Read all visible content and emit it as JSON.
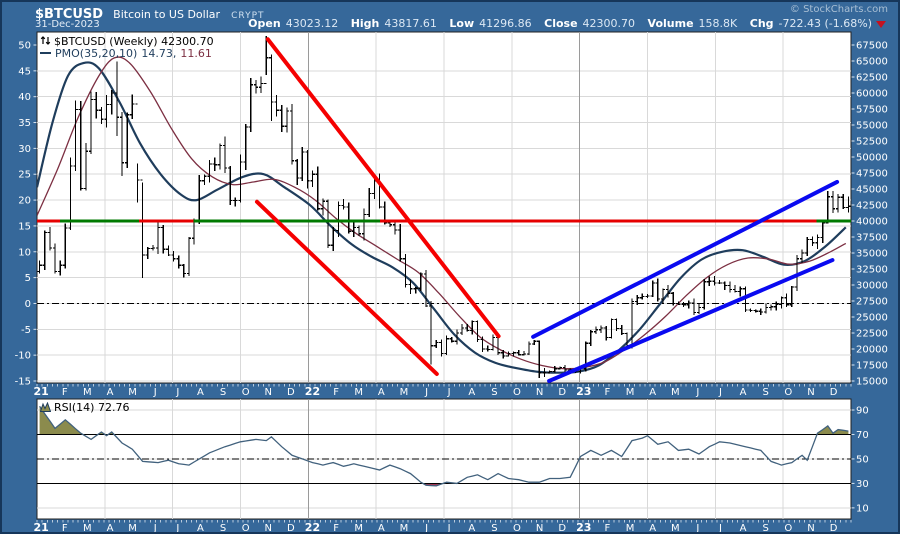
{
  "header": {
    "symbol": "$BTCUSD",
    "name": "Bitcoin to US Dollar",
    "exchange": "CRYPT",
    "date": "31-Dec-2023",
    "copyright": "© StockCharts.com",
    "quote": [
      {
        "label": "Open",
        "value": "43023.12"
      },
      {
        "label": "High",
        "value": "43817.61"
      },
      {
        "label": "Low",
        "value": "41296.86"
      },
      {
        "label": "Close",
        "value": "42300.70"
      },
      {
        "label": "Volume",
        "value": "158.8K"
      },
      {
        "label": "Chg",
        "value": "-722.43 (-1.68%)"
      }
    ]
  },
  "colors": {
    "frame": "#36689a",
    "bar": "#000000",
    "pmo": "#1f3d5c",
    "pmo_signal": "#7c2f42",
    "trend_red": "#f50000",
    "trend_blue": "#0a0af0",
    "hline_red": "#e60000",
    "hline_green": "#007a00",
    "rsi_line": "#41617d",
    "rsi_over_fill": "#8b8b4d",
    "rsi_under_fill": "#a53a55",
    "grid": "#d9d9d9",
    "grid_year": "#9a9a9a",
    "axis_text": "#ffffff"
  },
  "chart_data": [
    {
      "type": "bar",
      "title": "$BTCUSD (Weekly) 42300.70",
      "overlay": {
        "label": "PMO(35,20,10)",
        "pmo_value": "14.73,",
        "signal_value": "11.61"
      },
      "left_axis_ticks": [
        50,
        45,
        40,
        35,
        30,
        25,
        20,
        15,
        10,
        5,
        0,
        -5,
        -10,
        -15
      ],
      "right_axis_ticks": [
        67500,
        65000,
        62500,
        60000,
        57500,
        55000,
        52500,
        50000,
        47500,
        45000,
        42500,
        40000,
        37500,
        35000,
        32500,
        30000,
        27500,
        25000,
        22500,
        20000,
        17500,
        15000
      ],
      "x_labels": [
        "21",
        "F",
        "M",
        "A",
        "M",
        "J",
        "J",
        "A",
        "S",
        "O",
        "N",
        "D",
        "22",
        "F",
        "M",
        "A",
        "M",
        "J",
        "J",
        "A",
        "S",
        "O",
        "N",
        "D",
        "23",
        "F",
        "M",
        "A",
        "M",
        "J",
        "J",
        "A",
        "S",
        "O",
        "N",
        "D"
      ],
      "price_unit": "thousand-USD",
      "weekly_closes": [
        33.1,
        38.2,
        35.8,
        32.1,
        33.1,
        38.9,
        48.6,
        57.4,
        45.1,
        50.9,
        59.0,
        57.3,
        55.9,
        58.2,
        60.0,
        56.2,
        49.1,
        56.6,
        58.3,
        46.4,
        34.7,
        35.7,
        35.8,
        39.0,
        35.6,
        34.7,
        34.1,
        33.1,
        31.8,
        37.3,
        39.9,
        46.3,
        47.0,
        48.9,
        48.8,
        51.8,
        48.3,
        43.2,
        43.2,
        49.2,
        54.7,
        61.3,
        60.9,
        61.5,
        65.5,
        58.6,
        57.3,
        54.8,
        57.2,
        49.4,
        46.7,
        50.8,
        46.3,
        47.3,
        41.9,
        43.1,
        36.2,
        38.5,
        42.4,
        42.2,
        38.4,
        39.0,
        38.0,
        41.0,
        44.3,
        46.3,
        42.2,
        39.7,
        39.4,
        38.6,
        34.1,
        30.1,
        29.4,
        29.5,
        31.7,
        26.7,
        20.5,
        21.0,
        19.3,
        21.6,
        21.2,
        22.5,
        23.3,
        22.9,
        24.3,
        21.5,
        20.0,
        19.9,
        21.8,
        19.4,
        18.9,
        19.3,
        19.4,
        19.1,
        19.2,
        20.8,
        21.2,
        16.3,
        16.3,
        16.5,
        16.9,
        17.1,
        16.7,
        16.8,
        16.5,
        16.9,
        20.9,
        22.7,
        23.0,
        23.3,
        21.8,
        24.6,
        23.2,
        22.4,
        20.5,
        27.4,
        28.0,
        28.2,
        28.3,
        30.3,
        27.8,
        29.3,
        28.7,
        27.1,
        27.0,
        26.9,
        27.2,
        25.7,
        26.5,
        30.5,
        30.6,
        30.3,
        30.3,
        29.9,
        29.3,
        29.0,
        29.4,
        26.1,
        26.0,
        25.9,
        25.8,
        26.5,
        26.6,
        27.0,
        28.0,
        26.9,
        29.7,
        34.1,
        35.0,
        37.1,
        36.6,
        37.4,
        39.7,
        43.8,
        41.9,
        43.7,
        42.1,
        42.3
      ],
      "hl_overrides": {
        "15": [
          64.9,
          53.3
        ],
        "16": [
          57.0,
          47.0
        ],
        "19": [
          49.0,
          42.9
        ],
        "20": [
          46.0,
          31.1
        ],
        "44": [
          68.9,
          62.8
        ],
        "45": [
          66.0,
          55.6
        ],
        "76": [
          27.5,
          17.6
        ],
        "97": [
          21.3,
          15.5
        ],
        "98": [
          17.0,
          15.6
        ],
        "153": [
          44.7,
          39.6
        ],
        "157": [
          43.8,
          41.3
        ]
      },
      "pmo_line": [
        [
          0,
          22.5
        ],
        [
          3,
          35
        ],
        [
          6,
          44
        ],
        [
          9,
          46.5
        ],
        [
          12,
          45.5
        ],
        [
          16,
          39
        ],
        [
          20,
          31
        ],
        [
          24,
          25
        ],
        [
          28,
          21
        ],
        [
          31,
          20
        ],
        [
          35,
          22
        ],
        [
          40,
          24.5
        ],
        [
          44,
          25
        ],
        [
          48,
          22.5
        ],
        [
          53,
          19
        ],
        [
          57,
          15
        ],
        [
          61,
          11.5
        ],
        [
          65,
          9
        ],
        [
          69,
          7
        ],
        [
          73,
          4
        ],
        [
          77,
          -1
        ],
        [
          81,
          -6
        ],
        [
          85,
          -9.5
        ],
        [
          89,
          -11.5
        ],
        [
          93,
          -12.5
        ],
        [
          97,
          -13.2
        ],
        [
          101,
          -13.4
        ],
        [
          105,
          -13.2
        ],
        [
          109,
          -12
        ],
        [
          113,
          -9
        ],
        [
          117,
          -5
        ],
        [
          121,
          0
        ],
        [
          125,
          5
        ],
        [
          129,
          8.5
        ],
        [
          133,
          10
        ],
        [
          137,
          10.3
        ],
        [
          141,
          9
        ],
        [
          145,
          7.5
        ],
        [
          149,
          8.2
        ],
        [
          153,
          11
        ],
        [
          157,
          14.73
        ]
      ],
      "pmo_signal": [
        [
          0,
          17
        ],
        [
          4,
          26
        ],
        [
          8,
          36
        ],
        [
          12,
          44
        ],
        [
          15,
          47.5
        ],
        [
          18,
          46.5
        ],
        [
          22,
          41
        ],
        [
          26,
          34
        ],
        [
          30,
          28
        ],
        [
          34,
          24.5
        ],
        [
          38,
          23
        ],
        [
          42,
          23.5
        ],
        [
          46,
          24
        ],
        [
          50,
          22.5
        ],
        [
          54,
          20
        ],
        [
          58,
          16.5
        ],
        [
          62,
          13.5
        ],
        [
          66,
          11
        ],
        [
          70,
          8.5
        ],
        [
          74,
          6
        ],
        [
          78,
          2
        ],
        [
          82,
          -2.5
        ],
        [
          86,
          -6.5
        ],
        [
          90,
          -9
        ],
        [
          94,
          -10.8
        ],
        [
          98,
          -12
        ],
        [
          102,
          -12.6
        ],
        [
          106,
          -12.4
        ],
        [
          110,
          -11.4
        ],
        [
          114,
          -9
        ],
        [
          118,
          -6
        ],
        [
          122,
          -2.5
        ],
        [
          126,
          1.5
        ],
        [
          130,
          5
        ],
        [
          134,
          7.5
        ],
        [
          138,
          8.8
        ],
        [
          142,
          8.6
        ],
        [
          146,
          7.6
        ],
        [
          150,
          8.2
        ],
        [
          154,
          10
        ],
        [
          157,
          11.61
        ]
      ],
      "hline": {
        "price": 40,
        "red_segments": [
          [
            0,
            4.5
          ],
          [
            19.8,
            30.4
          ],
          [
            66.6,
            151.3
          ]
        ],
        "green_segments": [
          [
            4.5,
            19.8
          ],
          [
            30.4,
            66.6
          ],
          [
            151.3,
            158
          ]
        ]
      },
      "zero_dashdot_level": 0,
      "trendlines": [
        {
          "color": "red",
          "from": [
            44.8,
            68.4
          ],
          "to": [
            89.6,
            22.0
          ]
        },
        {
          "color": "red",
          "from": [
            42.7,
            43.0
          ],
          "to": [
            77.6,
            16.1
          ]
        },
        {
          "color": "blue",
          "from": [
            96.3,
            21.9
          ],
          "to": [
            155.3,
            46.1
          ]
        },
        {
          "color": "blue",
          "from": [
            99.4,
            15.0
          ],
          "to": [
            154.4,
            33.9
          ]
        }
      ],
      "quarter_gridline_weeks": [
        13.2,
        26.3,
        39.5,
        52.67,
        65.8,
        79.0,
        92.2,
        105.3,
        118.5,
        131.7,
        144.8
      ],
      "year_gridline_weeks": [
        52.67,
        105.3
      ]
    },
    {
      "type": "line",
      "label": "RSI(14) 72.76",
      "last_value": 72.76,
      "right_axis_ticks": [
        90,
        70,
        50,
        30,
        10
      ],
      "overbought": 70,
      "midline": 50,
      "oversold": 30,
      "ylim": [
        0,
        100
      ],
      "points": [
        [
          0,
          93
        ],
        [
          3,
          75
        ],
        [
          5,
          82
        ],
        [
          8,
          71
        ],
        [
          10,
          66
        ],
        [
          12,
          72
        ],
        [
          13,
          69
        ],
        [
          14,
          72
        ],
        [
          16,
          63
        ],
        [
          18,
          58
        ],
        [
          20,
          48
        ],
        [
          23,
          47
        ],
        [
          25,
          49
        ],
        [
          27,
          46
        ],
        [
          29,
          45
        ],
        [
          31,
          50
        ],
        [
          33,
          55
        ],
        [
          36,
          60
        ],
        [
          39,
          64
        ],
        [
          42,
          66
        ],
        [
          44,
          65
        ],
        [
          45,
          68
        ],
        [
          47,
          60
        ],
        [
          49,
          53
        ],
        [
          51,
          50
        ],
        [
          53,
          47
        ],
        [
          55,
          45
        ],
        [
          57,
          47
        ],
        [
          59,
          44
        ],
        [
          61,
          46
        ],
        [
          63,
          44
        ],
        [
          66,
          41
        ],
        [
          68,
          45
        ],
        [
          70,
          42
        ],
        [
          72,
          38
        ],
        [
          74,
          31
        ],
        [
          75,
          28.5
        ],
        [
          77,
          28
        ],
        [
          79,
          31
        ],
        [
          81,
          30
        ],
        [
          83,
          35
        ],
        [
          85,
          37
        ],
        [
          87,
          33
        ],
        [
          89,
          38
        ],
        [
          91,
          34
        ],
        [
          93,
          33
        ],
        [
          95,
          31
        ],
        [
          97,
          31
        ],
        [
          99,
          34
        ],
        [
          101,
          34
        ],
        [
          103,
          35
        ],
        [
          105,
          52
        ],
        [
          107,
          57
        ],
        [
          109,
          53
        ],
        [
          111,
          57
        ],
        [
          113,
          52
        ],
        [
          115,
          65
        ],
        [
          117,
          67
        ],
        [
          118,
          69
        ],
        [
          120,
          62
        ],
        [
          122,
          64
        ],
        [
          124,
          57
        ],
        [
          126,
          58
        ],
        [
          128,
          54
        ],
        [
          130,
          60
        ],
        [
          132,
          64
        ],
        [
          134,
          63
        ],
        [
          136,
          61
        ],
        [
          138,
          59
        ],
        [
          140,
          57
        ],
        [
          142,
          48
        ],
        [
          144,
          45
        ],
        [
          146,
          47
        ],
        [
          148,
          53
        ],
        [
          149,
          49
        ],
        [
          150,
          60
        ],
        [
          151,
          71
        ],
        [
          152,
          74
        ],
        [
          153,
          77
        ],
        [
          154,
          71
        ],
        [
          155,
          74
        ],
        [
          157,
          72.76
        ]
      ]
    }
  ]
}
